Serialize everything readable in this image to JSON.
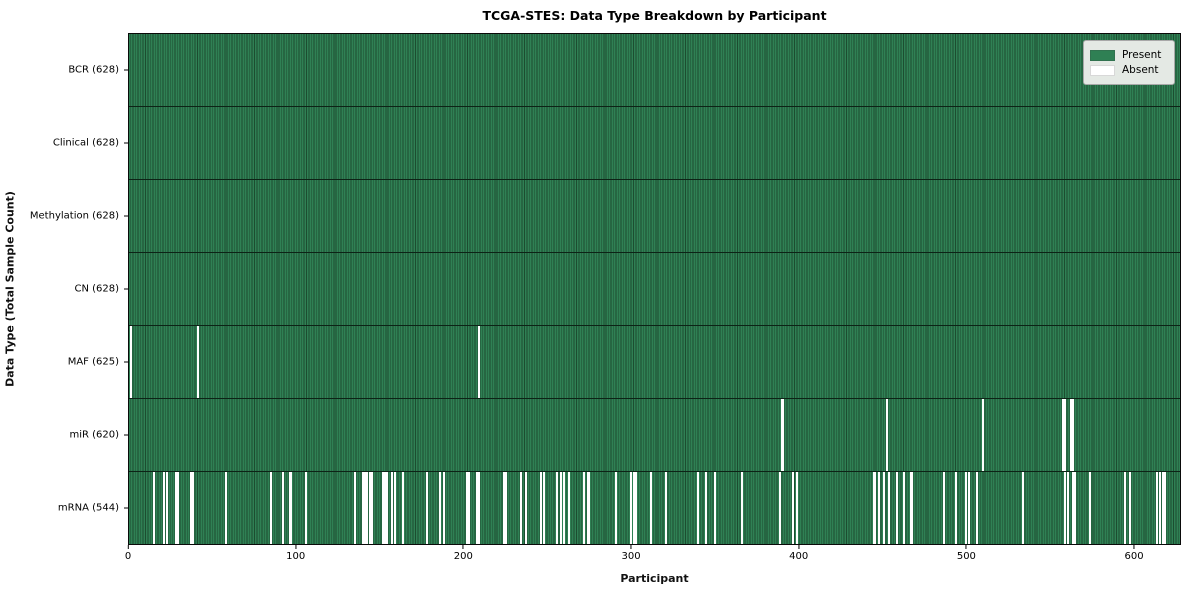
{
  "figure": {
    "title": "TCGA-STES: Data Type Breakdown by Participant",
    "xlabel": "Participant",
    "ylabel": "Data Type (Total Sample Count)"
  },
  "chart_data": {
    "type": "heatmap",
    "title": "TCGA-STES: Data Type Breakdown by Participant",
    "xlabel": "Participant",
    "ylabel": "Data Type (Total Sample Count)",
    "x_ticks": [
      0,
      100,
      200,
      300,
      400,
      500,
      600
    ],
    "x_range": [
      0,
      628
    ],
    "total_participants": 628,
    "grid": false,
    "legend": {
      "position": "upper right",
      "entries": [
        {
          "label": "Present",
          "color": "#2f8054"
        },
        {
          "label": "Absent",
          "color": "#ffffff"
        }
      ]
    },
    "colors": {
      "present": "#2f8054",
      "present_edge": "#1c4d30",
      "absent": "#ffffff"
    },
    "rows": [
      {
        "label": "BCR (628)",
        "data_type": "BCR",
        "present_count": 628,
        "absent_participants": []
      },
      {
        "label": "Clinical (628)",
        "data_type": "Clinical",
        "present_count": 628,
        "absent_participants": []
      },
      {
        "label": "Methylation (628)",
        "data_type": "Methylation",
        "present_count": 628,
        "absent_participants": []
      },
      {
        "label": "CN (628)",
        "data_type": "CN",
        "present_count": 628,
        "absent_participants": []
      },
      {
        "label": "MAF (625)",
        "data_type": "MAF",
        "present_count": 625,
        "absent_participants": [
          1,
          41,
          209
        ]
      },
      {
        "label": "miR (620)",
        "data_type": "miR",
        "present_count": 620,
        "absent_participants": [
          390,
          391,
          453,
          510,
          558,
          559,
          563,
          564
        ]
      },
      {
        "label": "mRNA (544)",
        "data_type": "mRNA",
        "present_count": 544,
        "absent_participants": [
          15,
          21,
          23,
          28,
          29,
          37,
          38,
          58,
          85,
          92,
          96,
          97,
          106,
          135,
          140,
          141,
          142,
          144,
          145,
          152,
          153,
          154,
          157,
          159,
          164,
          178,
          186,
          188,
          202,
          203,
          208,
          209,
          224,
          225,
          234,
          237,
          246,
          248,
          256,
          258,
          260,
          263,
          272,
          274,
          275,
          291,
          300,
          302,
          303,
          312,
          321,
          340,
          345,
          350,
          366,
          389,
          397,
          399,
          445,
          446,
          448,
          451,
          454,
          459,
          463,
          467,
          468,
          487,
          494,
          500,
          502,
          507,
          534,
          559,
          561,
          564,
          565,
          574,
          595,
          598,
          614,
          616,
          618,
          619
        ]
      }
    ]
  }
}
